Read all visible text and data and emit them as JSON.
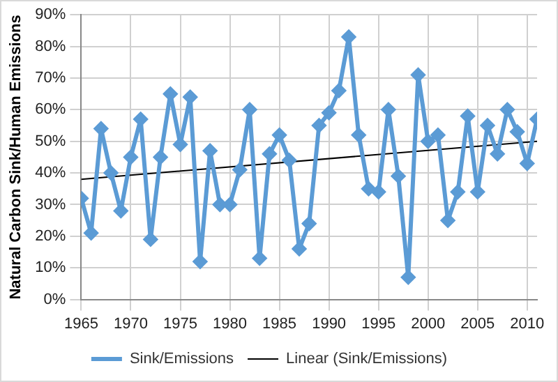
{
  "chart_data": {
    "type": "line",
    "ylabel": "Natural Carbon Sink/Human Emissions",
    "x": [
      1965,
      1966,
      1967,
      1968,
      1969,
      1970,
      1971,
      1972,
      1973,
      1974,
      1975,
      1976,
      1977,
      1978,
      1979,
      1980,
      1981,
      1982,
      1983,
      1984,
      1985,
      1986,
      1987,
      1988,
      1989,
      1990,
      1991,
      1992,
      1993,
      1994,
      1995,
      1996,
      1997,
      1998,
      1999,
      2000,
      2001,
      2002,
      2003,
      2004,
      2005,
      2006,
      2007,
      2008,
      2009,
      2010,
      2011
    ],
    "series": [
      {
        "name": "Sink/Emissions",
        "color": "#5b9bd5",
        "marker": "diamond",
        "values": [
          32,
          21,
          54,
          40,
          28,
          45,
          57,
          19,
          45,
          65,
          49,
          64,
          12,
          47,
          30,
          30,
          41,
          60,
          13,
          46,
          52,
          44,
          16,
          24,
          55,
          59,
          66,
          83,
          52,
          35,
          34,
          60,
          39,
          7,
          71,
          50,
          52,
          25,
          34,
          58,
          34,
          55,
          46,
          60,
          53,
          43,
          57
        ]
      },
      {
        "name": "Linear (Sink/Emissions)",
        "type": "line",
        "color": "#000000",
        "marker": "none",
        "x": [
          1965,
          2011
        ],
        "values": [
          38,
          50
        ]
      }
    ],
    "xlim": [
      1965,
      2011
    ],
    "xticks": [
      1965,
      1970,
      1975,
      1980,
      1985,
      1990,
      1995,
      2000,
      2005,
      2010
    ],
    "ylim": [
      0,
      90
    ],
    "yticks": [
      {
        "value": 0,
        "label": "0%"
      },
      {
        "value": 10,
        "label": "10%"
      },
      {
        "value": 20,
        "label": "20%"
      },
      {
        "value": 30,
        "label": "30%"
      },
      {
        "value": 40,
        "label": "40%"
      },
      {
        "value": 50,
        "label": "50%"
      },
      {
        "value": 60,
        "label": "60%"
      },
      {
        "value": 70,
        "label": "70%"
      },
      {
        "value": 80,
        "label": "80%"
      },
      {
        "value": 90,
        "label": "90%"
      }
    ],
    "grid": true,
    "legend": "bottom"
  }
}
